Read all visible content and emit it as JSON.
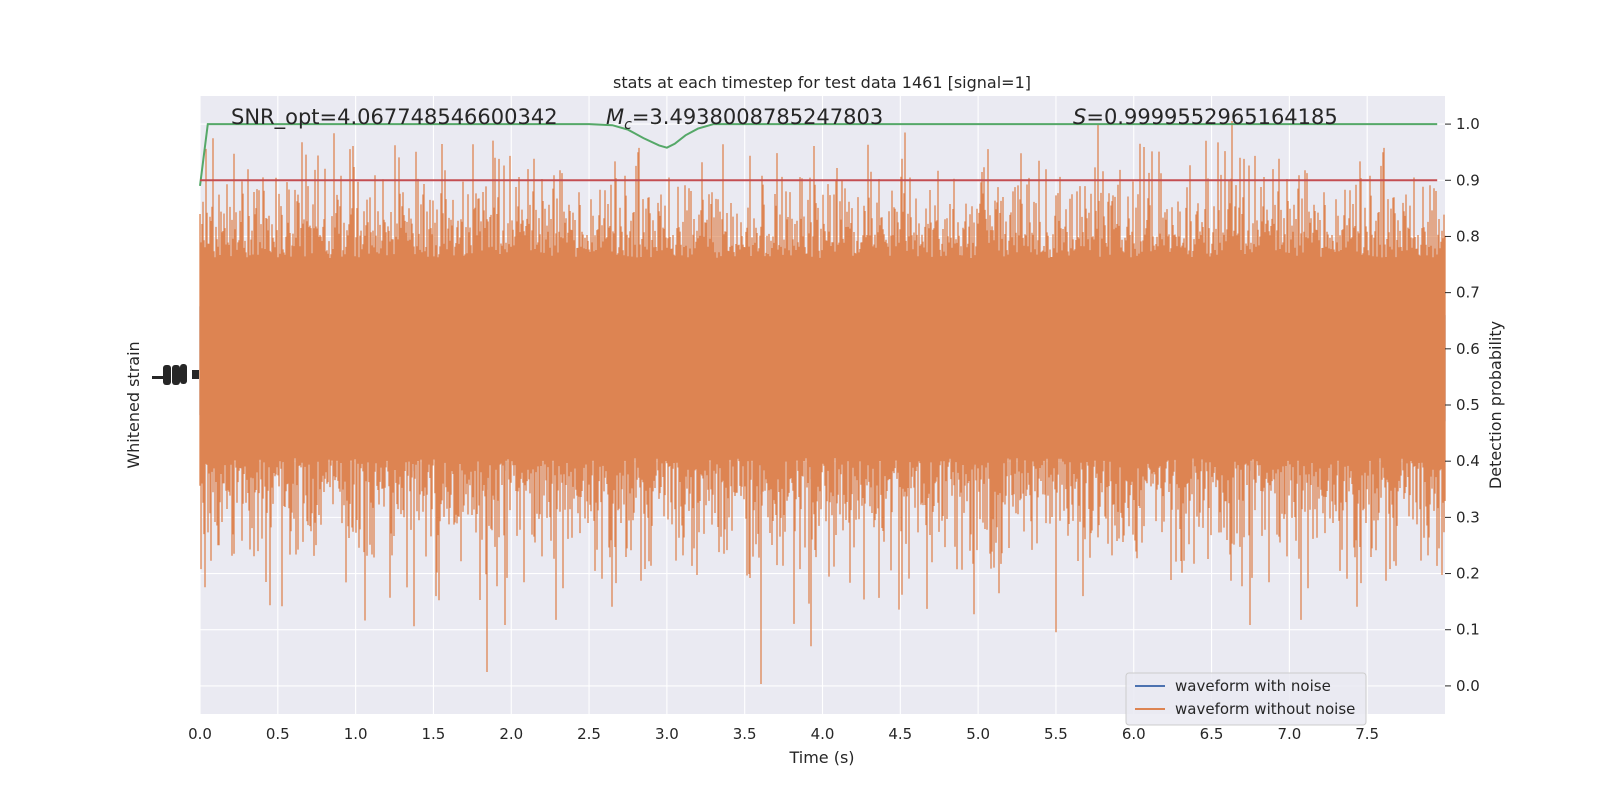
{
  "chart_data": {
    "type": "line",
    "title": "stats at each timestep for test data 1461 [signal=1]",
    "xlabel": "Time (s)",
    "ylabel_left": "Whitened strain",
    "ylabel_right": "Detection probability",
    "xlim": [
      0.0,
      8.0
    ],
    "ylim_right": [
      -0.05,
      1.05
    ],
    "x_ticks": [
      "0.0",
      "0.5",
      "1.0",
      "1.5",
      "2.0",
      "2.5",
      "3.0",
      "3.5",
      "4.0",
      "4.5",
      "5.0",
      "5.5",
      "6.0",
      "6.5",
      "7.0",
      "7.5"
    ],
    "y_ticks_right": [
      "0.0",
      "0.1",
      "0.2",
      "0.3",
      "0.4",
      "0.5",
      "0.6",
      "0.7",
      "0.8",
      "0.9",
      "1.0"
    ],
    "grid": true,
    "legend_position": "lower-right",
    "annotations": {
      "snr": "SNR_opt=4.067748546600342",
      "mc_symbol": "M",
      "mc_sub": "c",
      "mc_value": "=3.4938008785247803",
      "s_symbol": "S",
      "s_value": "=0.9999552965164185"
    },
    "series": [
      {
        "name": "waveform with noise",
        "color": "#4c72b0",
        "style": "noise-trace"
      },
      {
        "name": "waveform without noise",
        "color": "#dd8452",
        "style": "noise-trace"
      },
      {
        "color": "#55a868",
        "x": [
          0.0,
          0.05,
          0.1,
          2.5,
          2.65,
          2.75,
          2.85,
          2.95,
          3.0,
          3.05,
          3.12,
          3.2,
          3.3,
          3.4,
          7.95
        ],
        "y": [
          0.89,
          1.0,
          1.0,
          1.0,
          0.998,
          0.99,
          0.975,
          0.962,
          0.958,
          0.965,
          0.98,
          0.992,
          1.0,
          1.0,
          1.0
        ]
      },
      {
        "color": "#c44e52",
        "x": [
          0.0,
          7.95
        ],
        "y": [
          0.9,
          0.9
        ]
      }
    ],
    "colors": {
      "plot_bg": "#eaeaf2",
      "grid": "#ffffff",
      "orange": "#dd8452",
      "blue": "#4c72b0",
      "green": "#55a868",
      "red": "#c44e52"
    }
  }
}
